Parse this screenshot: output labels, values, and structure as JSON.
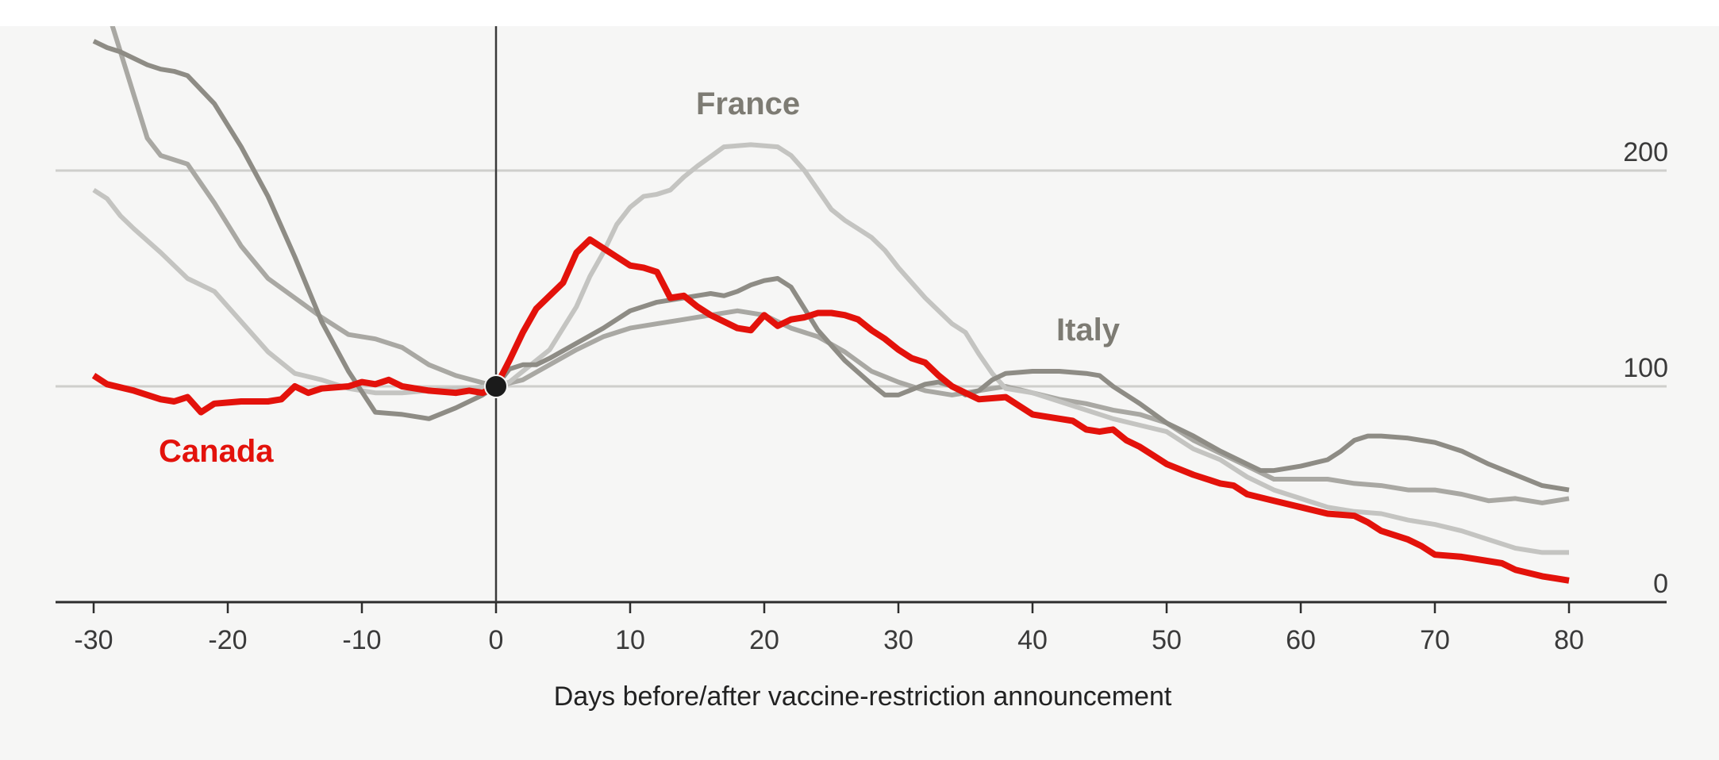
{
  "chart_data": {
    "type": "line",
    "xlabel": "Days before/after vaccine-restriction announcement",
    "ylabel": "",
    "xlim": [
      -33,
      88
    ],
    "ylim": [
      0,
      270
    ],
    "xticks": [
      "-30",
      "-20",
      "-10",
      "0",
      "10",
      "20",
      "30",
      "40",
      "50",
      "60",
      "70",
      "80"
    ],
    "yticks": [
      "200",
      "100",
      "0"
    ],
    "grid": "horizontal",
    "series": [
      {
        "name": "Canada",
        "color": "#e3120b",
        "labeled": true,
        "points": [
          [
            -30,
            105
          ],
          [
            -29,
            101
          ],
          [
            -27,
            98
          ],
          [
            -25,
            94
          ],
          [
            -24,
            93
          ],
          [
            -23,
            95
          ],
          [
            -22,
            88
          ],
          [
            -21,
            92
          ],
          [
            -19,
            93
          ],
          [
            -17,
            93
          ],
          [
            -16,
            94
          ],
          [
            -15,
            100
          ],
          [
            -14,
            97
          ],
          [
            -13,
            99
          ],
          [
            -11,
            100
          ],
          [
            -10,
            102
          ],
          [
            -9,
            101
          ],
          [
            -8,
            103
          ],
          [
            -7,
            100
          ],
          [
            -5,
            98
          ],
          [
            -3,
            97
          ],
          [
            -2,
            98
          ],
          [
            -1,
            97
          ],
          [
            0,
            100
          ],
          [
            1,
            112
          ],
          [
            2,
            125
          ],
          [
            3,
            136
          ],
          [
            4,
            142
          ],
          [
            5,
            148
          ],
          [
            6,
            162
          ],
          [
            7,
            168
          ],
          [
            8,
            164
          ],
          [
            9,
            160
          ],
          [
            10,
            156
          ],
          [
            11,
            155
          ],
          [
            12,
            153
          ],
          [
            13,
            141
          ],
          [
            14,
            142
          ],
          [
            15,
            137
          ],
          [
            16,
            133
          ],
          [
            17,
            130
          ],
          [
            18,
            127
          ],
          [
            19,
            126
          ],
          [
            20,
            133
          ],
          [
            21,
            128
          ],
          [
            22,
            131
          ],
          [
            23,
            132
          ],
          [
            24,
            134
          ],
          [
            25,
            134
          ],
          [
            26,
            133
          ],
          [
            27,
            131
          ],
          [
            28,
            126
          ],
          [
            29,
            122
          ],
          [
            30,
            117
          ],
          [
            31,
            113
          ],
          [
            32,
            111
          ],
          [
            33,
            105
          ],
          [
            34,
            100
          ],
          [
            35,
            97
          ],
          [
            36,
            94
          ],
          [
            38,
            95
          ],
          [
            39,
            91
          ],
          [
            40,
            87
          ],
          [
            42,
            85
          ],
          [
            43,
            84
          ],
          [
            44,
            80
          ],
          [
            45,
            79
          ],
          [
            46,
            80
          ],
          [
            47,
            75
          ],
          [
            48,
            72
          ],
          [
            49,
            68
          ],
          [
            50,
            64
          ],
          [
            52,
            59
          ],
          [
            54,
            55
          ],
          [
            55,
            54
          ],
          [
            56,
            50
          ],
          [
            58,
            47
          ],
          [
            60,
            44
          ],
          [
            62,
            41
          ],
          [
            64,
            40
          ],
          [
            65,
            37
          ],
          [
            66,
            33
          ],
          [
            68,
            29
          ],
          [
            69,
            26
          ],
          [
            70,
            22
          ],
          [
            72,
            21
          ],
          [
            73,
            20
          ],
          [
            75,
            18
          ],
          [
            76,
            15
          ],
          [
            78,
            12
          ],
          [
            79,
            11
          ],
          [
            80,
            10
          ]
        ]
      },
      {
        "name": "France",
        "color": "#c4c4c1",
        "labeled": true,
        "points": [
          [
            -30,
            191
          ],
          [
            -29,
            187
          ],
          [
            -28,
            179
          ],
          [
            -27,
            173
          ],
          [
            -25,
            162
          ],
          [
            -23,
            150
          ],
          [
            -21,
            144
          ],
          [
            -19,
            130
          ],
          [
            -17,
            116
          ],
          [
            -15,
            106
          ],
          [
            -13,
            103
          ],
          [
            -11,
            99
          ],
          [
            -9,
            97
          ],
          [
            -7,
            97
          ],
          [
            -5,
            98
          ],
          [
            -3,
            99
          ],
          [
            0,
            100
          ],
          [
            1,
            102
          ],
          [
            2,
            107
          ],
          [
            4,
            117
          ],
          [
            6,
            137
          ],
          [
            7,
            151
          ],
          [
            8,
            162
          ],
          [
            9,
            175
          ],
          [
            10,
            183
          ],
          [
            11,
            188
          ],
          [
            12,
            189
          ],
          [
            13,
            191
          ],
          [
            14,
            197
          ],
          [
            15,
            202
          ],
          [
            17,
            211
          ],
          [
            19,
            212
          ],
          [
            21,
            211
          ],
          [
            22,
            207
          ],
          [
            23,
            200
          ],
          [
            24,
            191
          ],
          [
            25,
            182
          ],
          [
            26,
            177
          ],
          [
            27,
            173
          ],
          [
            28,
            169
          ],
          [
            29,
            163
          ],
          [
            30,
            155
          ],
          [
            32,
            141
          ],
          [
            34,
            129
          ],
          [
            35,
            125
          ],
          [
            36,
            115
          ],
          [
            37,
            106
          ],
          [
            38,
            99
          ],
          [
            39,
            98
          ],
          [
            40,
            97
          ],
          [
            42,
            93
          ],
          [
            44,
            89
          ],
          [
            46,
            85
          ],
          [
            48,
            82
          ],
          [
            50,
            79
          ],
          [
            52,
            71
          ],
          [
            54,
            66
          ],
          [
            56,
            58
          ],
          [
            58,
            52
          ],
          [
            60,
            48
          ],
          [
            62,
            44
          ],
          [
            64,
            42
          ],
          [
            66,
            41
          ],
          [
            68,
            38
          ],
          [
            70,
            36
          ],
          [
            72,
            33
          ],
          [
            74,
            29
          ],
          [
            76,
            25
          ],
          [
            78,
            23
          ],
          [
            80,
            23
          ]
        ]
      },
      {
        "name": "Italy",
        "color": "#8e8c85",
        "labeled": true,
        "points": [
          [
            -30,
            260
          ],
          [
            -29,
            257
          ],
          [
            -28,
            255
          ],
          [
            -27,
            252
          ],
          [
            -26,
            249
          ],
          [
            -25,
            247
          ],
          [
            -24,
            246
          ],
          [
            -23,
            244
          ],
          [
            -21,
            231
          ],
          [
            -19,
            211
          ],
          [
            -17,
            188
          ],
          [
            -15,
            160
          ],
          [
            -13,
            130
          ],
          [
            -11,
            107
          ],
          [
            -9,
            88
          ],
          [
            -7,
            87
          ],
          [
            -5,
            85
          ],
          [
            -3,
            90
          ],
          [
            -1,
            96
          ],
          [
            0,
            100
          ],
          [
            1,
            108
          ],
          [
            2,
            110
          ],
          [
            3,
            110
          ],
          [
            4,
            113
          ],
          [
            6,
            120
          ],
          [
            8,
            127
          ],
          [
            10,
            135
          ],
          [
            12,
            139
          ],
          [
            14,
            141
          ],
          [
            16,
            143
          ],
          [
            17,
            142
          ],
          [
            18,
            144
          ],
          [
            19,
            147
          ],
          [
            20,
            149
          ],
          [
            21,
            150
          ],
          [
            22,
            146
          ],
          [
            23,
            136
          ],
          [
            24,
            126
          ],
          [
            26,
            112
          ],
          [
            28,
            101
          ],
          [
            29,
            96
          ],
          [
            30,
            96
          ],
          [
            32,
            101
          ],
          [
            33,
            102
          ],
          [
            34,
            100
          ],
          [
            35,
            96
          ],
          [
            36,
            98
          ],
          [
            37,
            103
          ],
          [
            38,
            106
          ],
          [
            40,
            107
          ],
          [
            42,
            107
          ],
          [
            44,
            106
          ],
          [
            45,
            105
          ],
          [
            46,
            100
          ],
          [
            48,
            92
          ],
          [
            50,
            83
          ],
          [
            52,
            77
          ],
          [
            54,
            70
          ],
          [
            56,
            64
          ],
          [
            57,
            61
          ],
          [
            58,
            61
          ],
          [
            60,
            63
          ],
          [
            62,
            66
          ],
          [
            63,
            70
          ],
          [
            64,
            75
          ],
          [
            65,
            77
          ],
          [
            66,
            77
          ],
          [
            68,
            76
          ],
          [
            70,
            74
          ],
          [
            72,
            70
          ],
          [
            74,
            64
          ],
          [
            76,
            59
          ],
          [
            78,
            54
          ],
          [
            79,
            53
          ],
          [
            80,
            52
          ]
        ]
      },
      {
        "name": "",
        "color": "#a9a8a3",
        "labeled": false,
        "points": [
          [
            -30,
            290
          ],
          [
            -29,
            275
          ],
          [
            -28,
            255
          ],
          [
            -27,
            235
          ],
          [
            -26,
            215
          ],
          [
            -25,
            207
          ],
          [
            -23,
            203
          ],
          [
            -21,
            185
          ],
          [
            -19,
            165
          ],
          [
            -17,
            150
          ],
          [
            -15,
            141
          ],
          [
            -13,
            132
          ],
          [
            -11,
            124
          ],
          [
            -9,
            122
          ],
          [
            -7,
            118
          ],
          [
            -5,
            110
          ],
          [
            -3,
            105
          ],
          [
            0,
            100
          ],
          [
            2,
            103
          ],
          [
            4,
            110
          ],
          [
            6,
            117
          ],
          [
            8,
            123
          ],
          [
            10,
            127
          ],
          [
            12,
            129
          ],
          [
            14,
            131
          ],
          [
            16,
            133
          ],
          [
            18,
            135
          ],
          [
            20,
            133
          ],
          [
            22,
            127
          ],
          [
            24,
            123
          ],
          [
            26,
            116
          ],
          [
            28,
            107
          ],
          [
            30,
            102
          ],
          [
            32,
            98
          ],
          [
            34,
            96
          ],
          [
            36,
            98
          ],
          [
            38,
            100
          ],
          [
            40,
            97
          ],
          [
            42,
            94
          ],
          [
            44,
            92
          ],
          [
            46,
            89
          ],
          [
            48,
            87
          ],
          [
            50,
            83
          ],
          [
            52,
            75
          ],
          [
            54,
            69
          ],
          [
            56,
            63
          ],
          [
            58,
            57
          ],
          [
            60,
            57
          ],
          [
            62,
            57
          ],
          [
            64,
            55
          ],
          [
            66,
            54
          ],
          [
            68,
            52
          ],
          [
            70,
            52
          ],
          [
            72,
            50
          ],
          [
            74,
            47
          ],
          [
            76,
            48
          ],
          [
            78,
            46
          ],
          [
            80,
            48
          ]
        ]
      }
    ]
  }
}
